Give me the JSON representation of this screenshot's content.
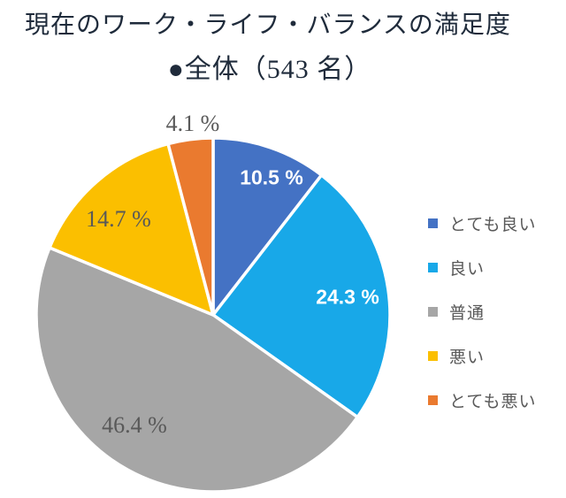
{
  "header": {
    "title": "現在のワーク・ライフ・バランスの満足度",
    "subtitle": "●全体（543 名）"
  },
  "chart_data": {
    "type": "pie",
    "title": "現在のワーク・ライフ・バランスの満足度",
    "subtitle": "●全体（543 名）",
    "group_label": "全体",
    "sample_size_text": "543 名",
    "categories": [
      "とても良い",
      "良い",
      "普通",
      "悪い",
      "とても悪い"
    ],
    "values": [
      10.5,
      24.3,
      46.4,
      14.7,
      4.1
    ],
    "unit": "%",
    "colors": [
      "#4472C4",
      "#18A8E8",
      "#A6A6A6",
      "#FBBF00",
      "#EA7A2F"
    ],
    "start_angle_deg": 0,
    "direction": "clockwise",
    "legend_position": "right",
    "slice_labels": [
      "10.5 %",
      "24.3 %",
      "46.4 %",
      "14.7 %",
      "4.1 %"
    ],
    "slice_label_placement": [
      "inside",
      "inside",
      "inside",
      "inside",
      "outside"
    ]
  },
  "legend": {
    "items": [
      {
        "label": "とても良い",
        "color": "#4472C4"
      },
      {
        "label": "良い",
        "color": "#18A8E8"
      },
      {
        "label": "普通",
        "color": "#A6A6A6"
      },
      {
        "label": "悪い",
        "color": "#FBBF00"
      },
      {
        "label": "とても悪い",
        "color": "#EA7A2F"
      }
    ]
  }
}
